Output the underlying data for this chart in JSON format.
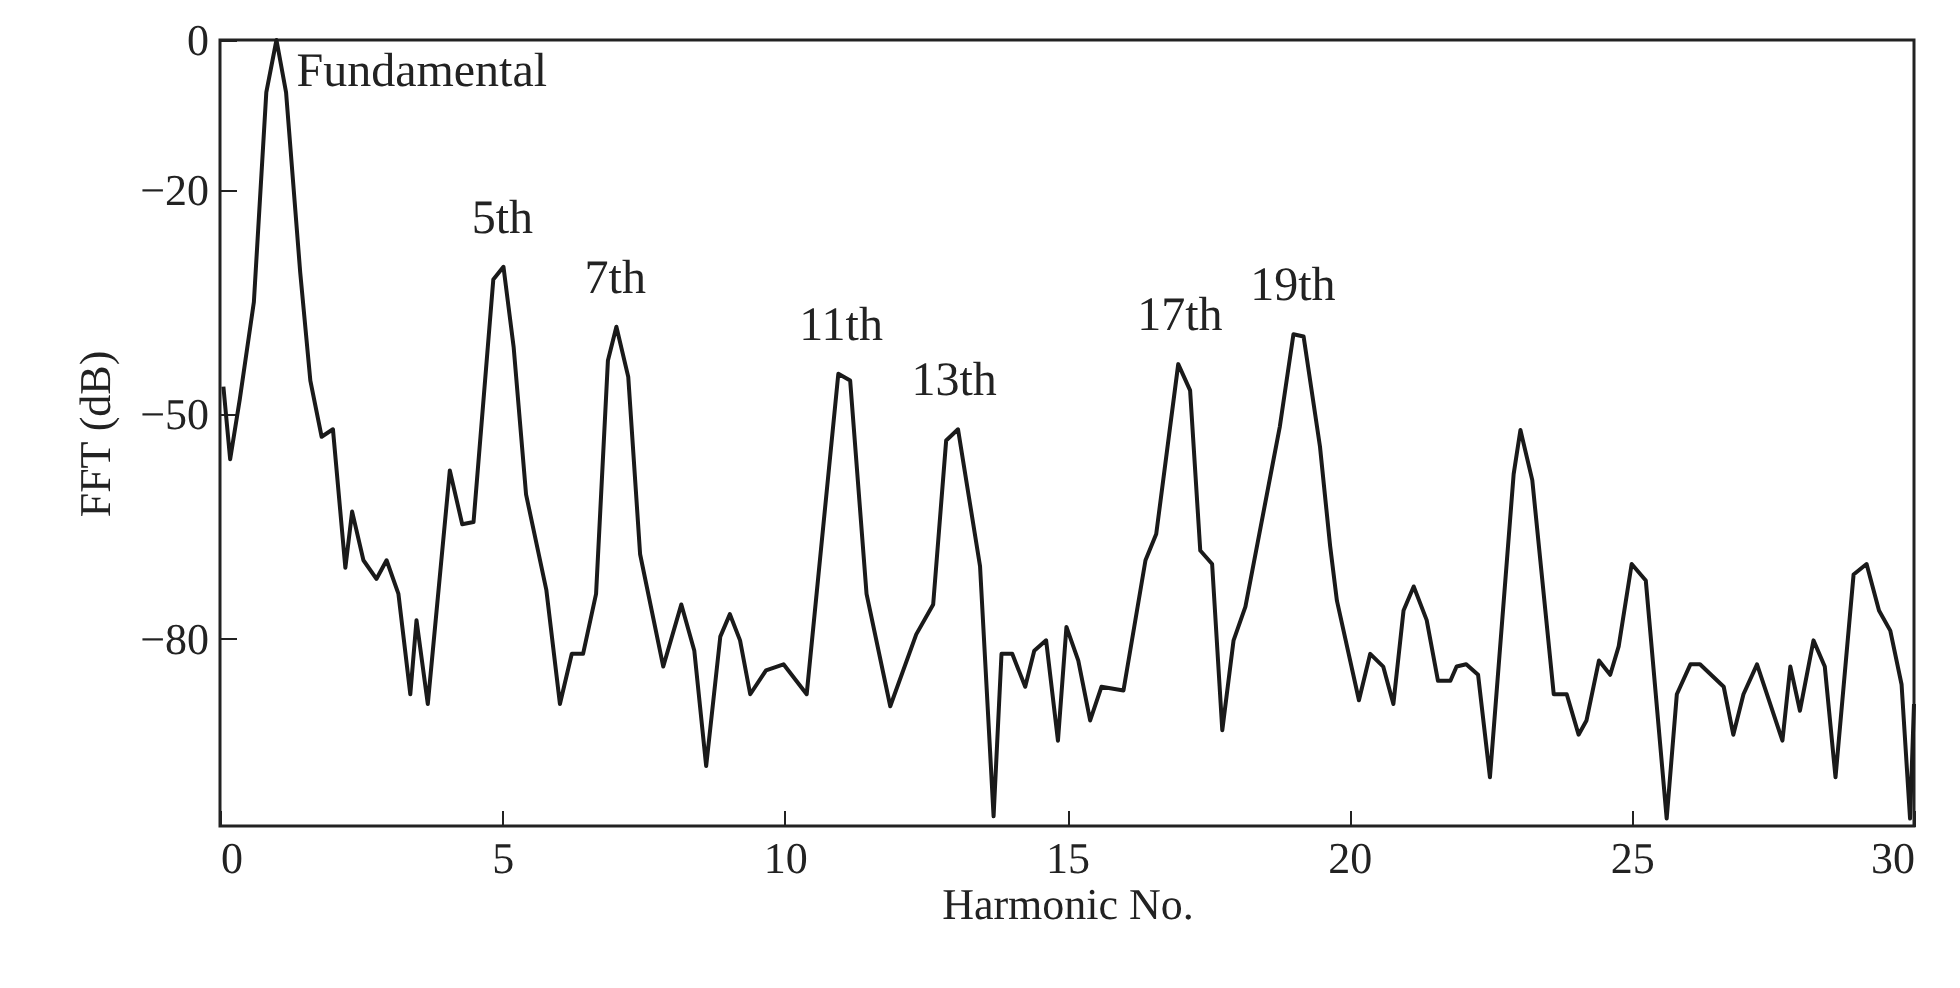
{
  "chart_data": {
    "type": "line",
    "xlabel": "Harmonic No.",
    "ylabel": "FFT (dB)",
    "xlim": [
      0,
      30
    ],
    "xticks": [
      0,
      5,
      10,
      15,
      20,
      25,
      30
    ],
    "ylim": [
      -105,
      0
    ],
    "yticks": [
      0,
      -20,
      -50,
      -80
    ],
    "grid": false,
    "marker": "none",
    "line_style": "solid",
    "series": [
      {
        "color": "#1a1a1a",
        "x": [
          0.06,
          0.18,
          0.35,
          0.6,
          0.82,
          1.0,
          1.17,
          1.42,
          1.6,
          1.8,
          2.0,
          2.22,
          2.34,
          2.54,
          2.77,
          2.95,
          3.16,
          3.37,
          3.48,
          3.68,
          4.07,
          4.29,
          4.49,
          4.84,
          5.02,
          5.2,
          5.42,
          5.78,
          6.02,
          6.23,
          6.43,
          6.66,
          6.87,
          7.02,
          7.23,
          7.44,
          7.85,
          8.17,
          8.4,
          8.61,
          8.86,
          9.03,
          9.21,
          9.39,
          9.67,
          9.98,
          10.39,
          10.95,
          11.16,
          11.45,
          11.87,
          12.33,
          12.63,
          12.86,
          13.07,
          13.46,
          13.7,
          13.84,
          14.03,
          14.26,
          14.42,
          14.63,
          14.84,
          14.99,
          15.2,
          15.41,
          15.61,
          16.0,
          16.39,
          16.58,
          16.97,
          17.18,
          17.36,
          17.57,
          17.75,
          17.95,
          18.16,
          18.77,
          19.01,
          19.19,
          19.48,
          19.66,
          19.78,
          20.17,
          20.37,
          20.6,
          20.78,
          20.96,
          21.14,
          21.37,
          21.57,
          21.79,
          21.9,
          22.07,
          22.28,
          22.49,
          22.91,
          23.03,
          23.24,
          23.62,
          23.85,
          24.06,
          24.2,
          24.42,
          24.62,
          24.77,
          25.0,
          25.25,
          25.62,
          25.8,
          26.04,
          26.21,
          26.63,
          26.8,
          26.98,
          27.22,
          27.67,
          27.81,
          27.98,
          28.22,
          28.42,
          28.61,
          28.93,
          29.16,
          29.38,
          29.58,
          29.78,
          29.93,
          30.0
        ],
        "values": [
          -46.3,
          -56,
          -48,
          -35,
          -7,
          0,
          -7,
          -31,
          -45.5,
          -53,
          -52,
          -70.5,
          -63,
          -69.5,
          -72,
          -69.5,
          -74,
          -87.4,
          -77.5,
          -88.7,
          -57.5,
          -64.7,
          -64.4,
          -32,
          -30.3,
          -41,
          -60.7,
          -73.5,
          -88.7,
          -82,
          -82,
          -74,
          -42.8,
          -38.3,
          -45,
          -68.7,
          -83.7,
          -75.4,
          -81.6,
          -97,
          -79.7,
          -76.7,
          -80.2,
          -87.4,
          -84.2,
          -83.4,
          -87.4,
          -44.6,
          -45.5,
          -74,
          -89,
          -79.4,
          -75.4,
          -53.5,
          -52,
          -70.3,
          -103.7,
          -82,
          -82,
          -86.4,
          -81.6,
          -80.2,
          -93.6,
          -78.4,
          -82.9,
          -90.9,
          -86.4,
          -86.9,
          -69.5,
          -66,
          -43.3,
          -46.8,
          -68.2,
          -70,
          -92.2,
          -80.2,
          -75.7,
          -51.6,
          -39.3,
          -39.6,
          -54.3,
          -67.6,
          -74.9,
          -88.2,
          -82,
          -83.7,
          -88.7,
          -76.2,
          -73,
          -77.5,
          -85.6,
          -85.6,
          -83.7,
          -83.4,
          -84.8,
          -98.5,
          -58,
          -52.1,
          -58.8,
          -87.4,
          -87.4,
          -92.8,
          -90.9,
          -82.9,
          -84.8,
          -81,
          -70,
          -72.2,
          -104,
          -87.4,
          -83.4,
          -83.4,
          -86.4,
          -92.8,
          -87.4,
          -83.4,
          -93.6,
          -83.7,
          -89.6,
          -80.2,
          -83.7,
          -98.5,
          -71.4,
          -70,
          -76.2,
          -78.9,
          -86.1,
          -104,
          -88.7
        ]
      }
    ],
    "annotations": [
      {
        "text": "Fundamental",
        "x": 1,
        "y": 0
      },
      {
        "text": "5th",
        "x": 5,
        "y": -30.3
      },
      {
        "text": "7th",
        "x": 7,
        "y": -38.3
      },
      {
        "text": "11th",
        "x": 11,
        "y": -44.6
      },
      {
        "text": "13th",
        "x": 13,
        "y": -52
      },
      {
        "text": "17th",
        "x": 17,
        "y": -43.3
      },
      {
        "text": "19th",
        "x": 19,
        "y": -39.3
      }
    ]
  }
}
